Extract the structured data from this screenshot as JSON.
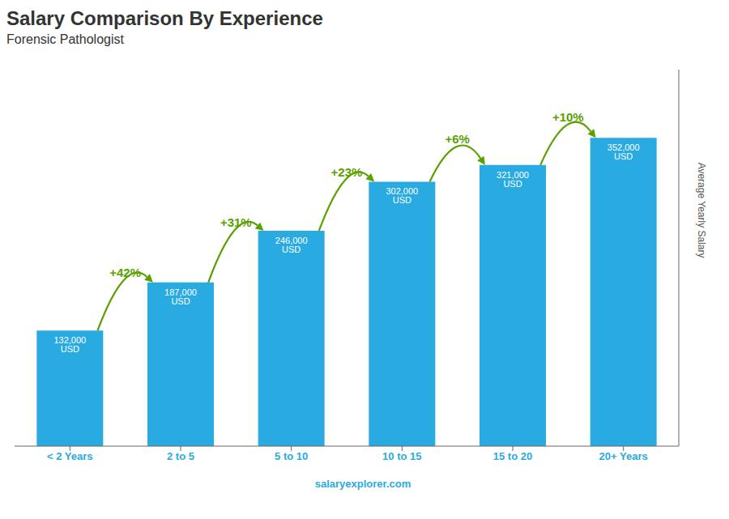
{
  "chart_data": {
    "type": "bar",
    "title": "Salary Comparison By Experience",
    "subtitle": "Forensic Pathologist",
    "ylabel": "Average Yearly Salary",
    "categories": [
      "< 2 Years",
      "2 to 5",
      "5 to 10",
      "10 to 15",
      "15 to 20",
      "20+ Years"
    ],
    "values": [
      132000,
      187000,
      246000,
      302000,
      321000,
      352000
    ],
    "value_labels": [
      "132,000 USD",
      "187,000 USD",
      "246,000 USD",
      "302,000 USD",
      "321,000 USD",
      "352,000 USD"
    ],
    "data_labels": true,
    "color": "#29ABE2",
    "ylim": [
      0,
      430000
    ],
    "tick_labels": "x",
    "grid": false,
    "annotations": [
      "+42%",
      "+31%",
      "+23%",
      "+6%",
      "+10%",
      "salaryexplorer.com"
    ]
  }
}
